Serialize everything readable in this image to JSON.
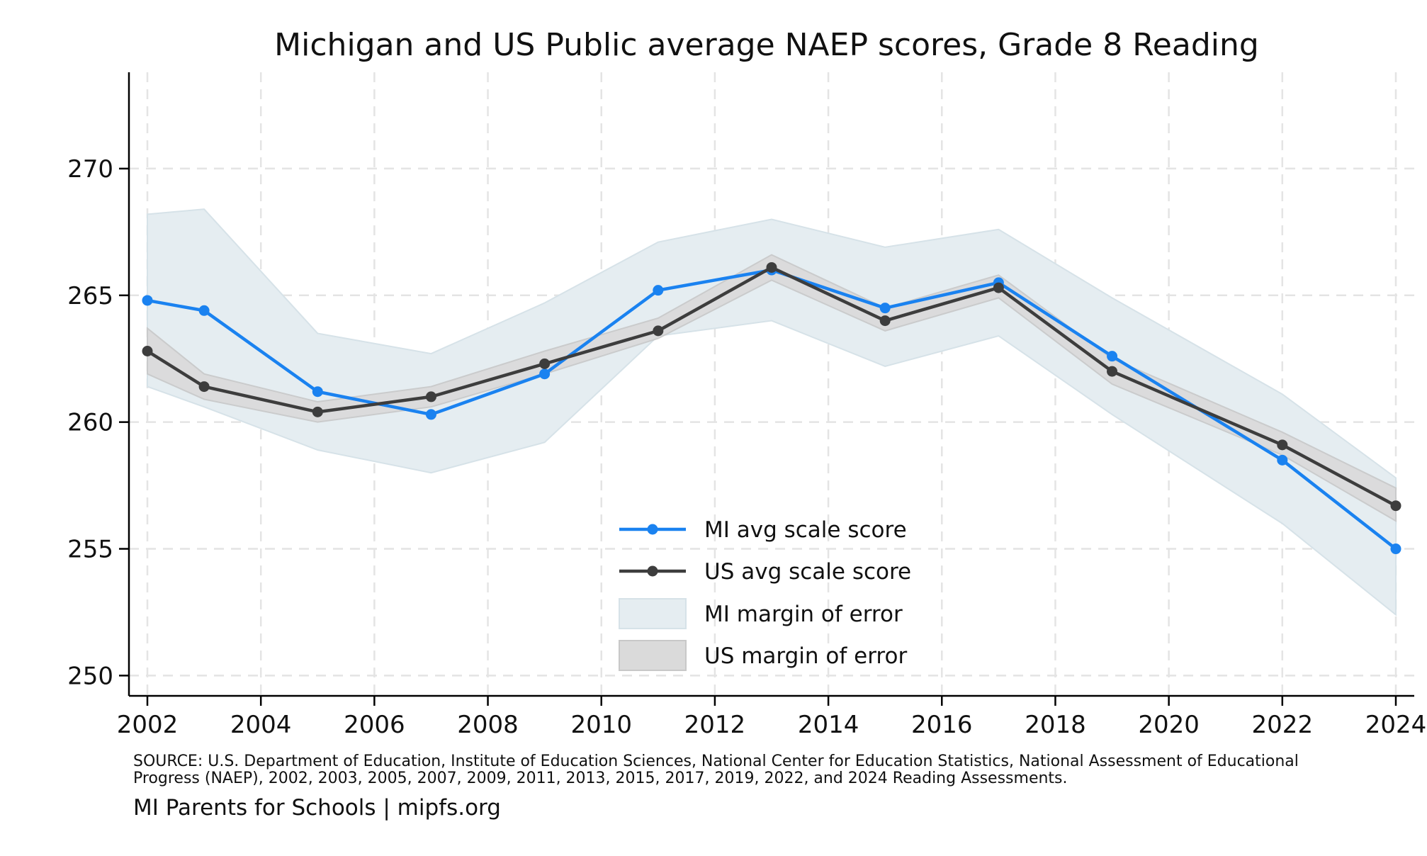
{
  "chart_data": {
    "type": "line",
    "title": "Michigan and US Public average NAEP scores, Grade 8 Reading",
    "x": [
      2002,
      2003,
      2005,
      2007,
      2009,
      2011,
      2013,
      2015,
      2017,
      2019,
      2022,
      2024
    ],
    "xlim": [
      2002,
      2024
    ],
    "xticks": [
      2002,
      2004,
      2006,
      2008,
      2010,
      2012,
      2014,
      2016,
      2018,
      2020,
      2022,
      2024
    ],
    "xtick_labels": [
      "2002",
      "2004",
      "2006",
      "2008",
      "2010",
      "2012",
      "2014",
      "2016",
      "2018",
      "2020",
      "2022",
      "2024"
    ],
    "ylim": [
      249.2,
      273.8
    ],
    "yticks": [
      250,
      255,
      260,
      265,
      270
    ],
    "ytick_labels": [
      "250",
      "255",
      "260",
      "265",
      "270"
    ],
    "grid": true,
    "series": [
      {
        "name": "MI avg scale score",
        "color": "#1a82f0",
        "values": [
          264.8,
          264.4,
          261.2,
          260.3,
          261.9,
          265.2,
          266.0,
          264.5,
          265.5,
          262.6,
          258.5,
          255.0
        ]
      },
      {
        "name": "US avg scale score",
        "color": "#3d3d3d",
        "values": [
          262.8,
          261.4,
          260.4,
          261.0,
          262.3,
          263.6,
          266.1,
          264.0,
          265.3,
          262.0,
          259.1,
          256.7
        ]
      }
    ],
    "bands": [
      {
        "name": "MI margin of error",
        "color": "#e5edf1",
        "lower": [
          261.4,
          260.6,
          258.9,
          258.0,
          259.2,
          263.4,
          264.0,
          262.2,
          263.4,
          260.3,
          256.0,
          252.4
        ],
        "upper": [
          268.2,
          268.4,
          263.5,
          262.7,
          264.7,
          267.1,
          268.0,
          266.9,
          267.6,
          264.9,
          261.1,
          257.8
        ]
      },
      {
        "name": "US margin of error",
        "color": "#dadada",
        "lower": [
          261.9,
          260.9,
          260.0,
          260.6,
          261.9,
          263.3,
          265.6,
          263.6,
          264.9,
          261.5,
          258.7,
          256.1
        ],
        "upper": [
          263.7,
          261.9,
          260.8,
          261.4,
          262.8,
          264.1,
          266.6,
          264.5,
          265.8,
          262.5,
          259.6,
          257.4
        ]
      }
    ],
    "legend_placement": "bottom-center",
    "source_lines": [
      "SOURCE: U.S. Department of Education, Institute of Education Sciences, National Center for Education Statistics, National Assessment of Educational",
      "Progress (NAEP), 2002, 2003, 2005, 2007, 2009, 2011, 2013, 2015, 2017, 2019, 2022, and 2024 Reading Assessments."
    ],
    "attribution": "MI Parents for Schools | mipfs.org"
  }
}
